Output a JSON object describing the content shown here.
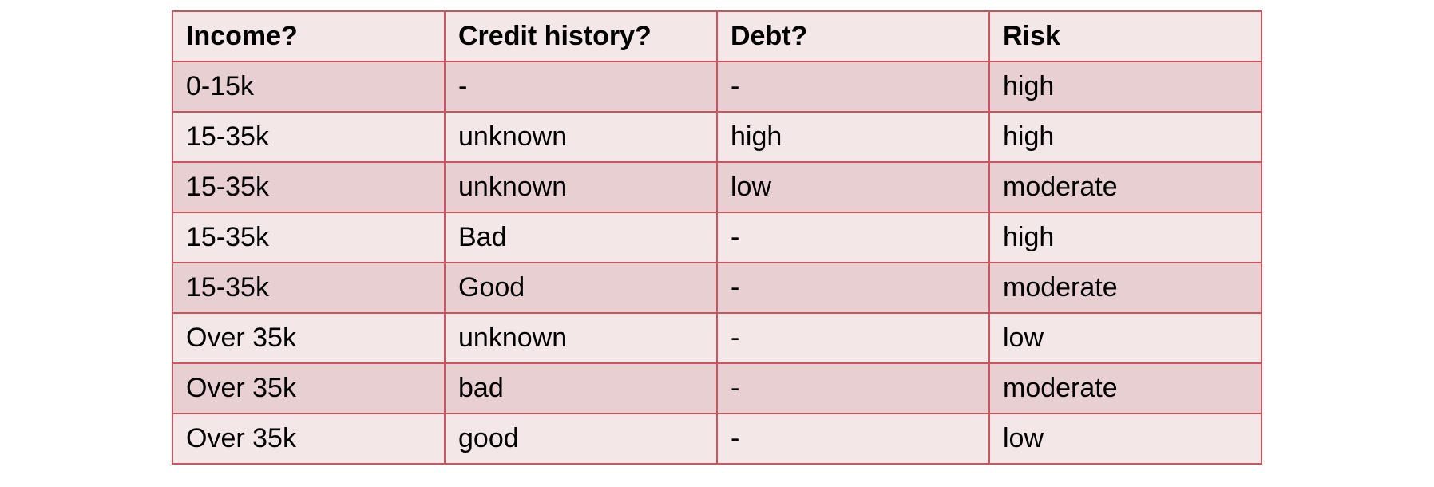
{
  "table": {
    "headers": [
      "Income?",
      "Credit history?",
      "Debt?",
      "Risk"
    ],
    "rows": [
      [
        "0-15k",
        "-",
        "-",
        "high"
      ],
      [
        "15-35k",
        "unknown",
        "high",
        "high"
      ],
      [
        "15-35k",
        "unknown",
        "low",
        "moderate"
      ],
      [
        "15-35k",
        "Bad",
        "-",
        "high"
      ],
      [
        "15-35k",
        "Good",
        "-",
        "moderate"
      ],
      [
        "Over 35k",
        "unknown",
        "-",
        "low"
      ],
      [
        "Over 35k",
        "bad",
        "-",
        "moderate"
      ],
      [
        "Over 35k",
        "good",
        "-",
        "low"
      ]
    ]
  },
  "colors": {
    "border": "#c9555e",
    "row_light": "#f3e7e8",
    "row_dark": "#e8d0d2"
  }
}
